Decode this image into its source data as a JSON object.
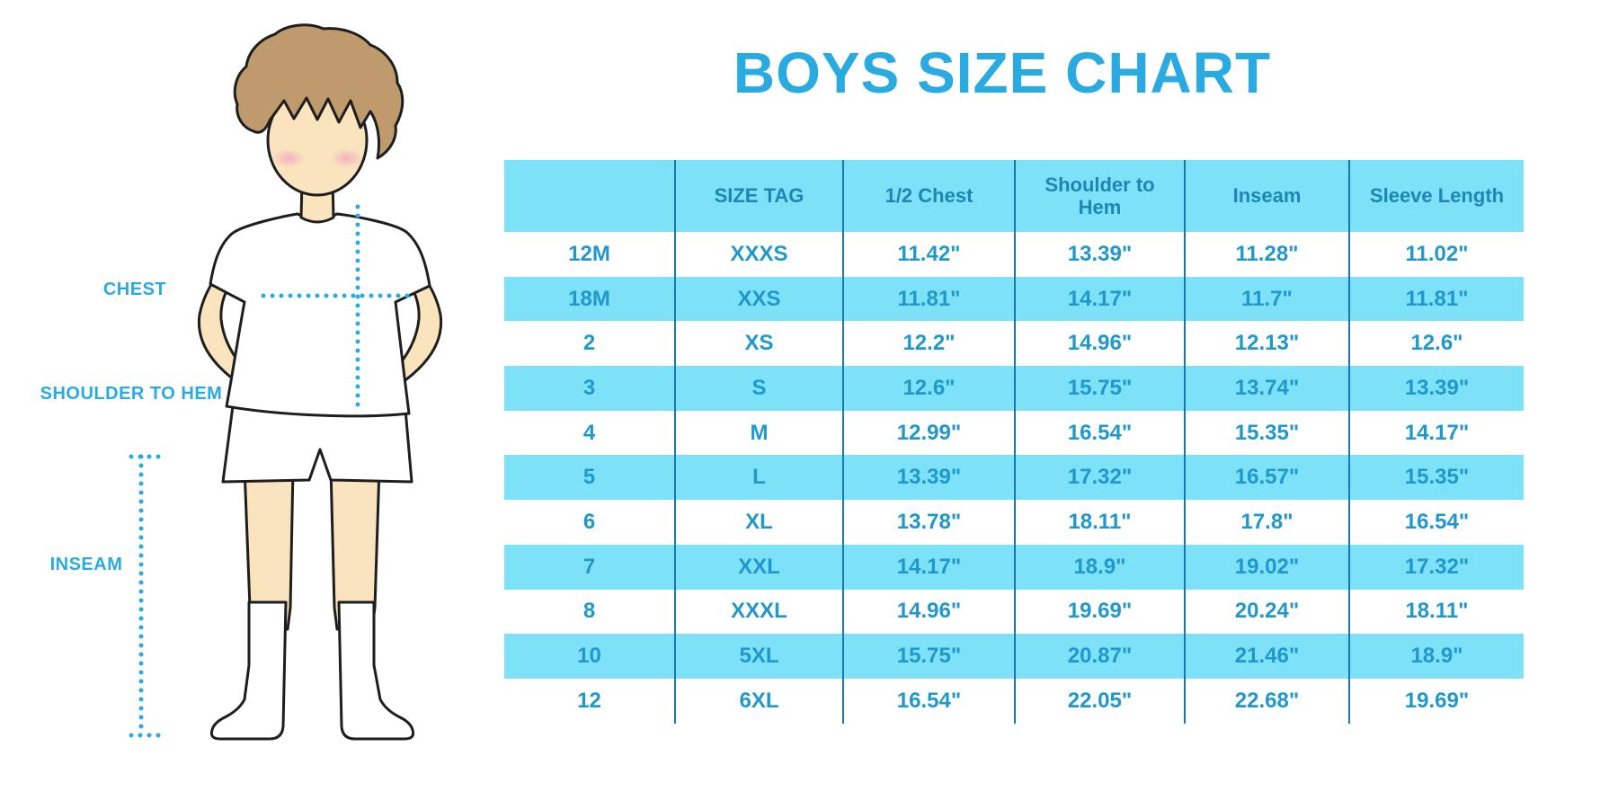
{
  "title": "BOYS SIZE CHART",
  "figure": {
    "labels": {
      "chest": "CHEST",
      "shoulder_to_hem": "SHOULDER TO HEM",
      "inseam": "INSEAM"
    }
  },
  "colors": {
    "accent_blue": "#29ABE2",
    "table_stripe": "#7DE1F8",
    "header_text": "#1D86B5",
    "cell_text": "#2098CC",
    "grid_line": "#1878AE",
    "skin": "#F9E4BE",
    "hair": "#BF9A6C",
    "blush": "#F2A9BE"
  },
  "chart_data": {
    "type": "table",
    "title": "BOYS SIZE CHART",
    "columns": [
      "",
      "SIZE TAG",
      "1/2 Chest",
      "Shoulder to Hem",
      "Inseam",
      "Sleeve Length"
    ],
    "rows": [
      [
        "12M",
        "XXXS",
        "11.42\"",
        "13.39\"",
        "11.28\"",
        "11.02\""
      ],
      [
        "18M",
        "XXS",
        "11.81\"",
        "14.17\"",
        "11.7\"",
        "11.81\""
      ],
      [
        "2",
        "XS",
        "12.2\"",
        "14.96\"",
        "12.13\"",
        "12.6\""
      ],
      [
        "3",
        "S",
        "12.6\"",
        "15.75\"",
        "13.74\"",
        "13.39\""
      ],
      [
        "4",
        "M",
        "12.99\"",
        "16.54\"",
        "15.35\"",
        "14.17\""
      ],
      [
        "5",
        "L",
        "13.39\"",
        "17.32\"",
        "16.57\"",
        "15.35\""
      ],
      [
        "6",
        "XL",
        "13.78\"",
        "18.11\"",
        "17.8\"",
        "16.54\""
      ],
      [
        "7",
        "XXL",
        "14.17\"",
        "18.9\"",
        "19.02\"",
        "17.32\""
      ],
      [
        "8",
        "XXXL",
        "14.96\"",
        "19.69\"",
        "20.24\"",
        "18.11\""
      ],
      [
        "10",
        "5XL",
        "15.75\"",
        "20.87\"",
        "21.46\"",
        "18.9\""
      ],
      [
        "12",
        "6XL",
        "16.54\"",
        "22.05\"",
        "22.68\"",
        "19.69\""
      ]
    ]
  }
}
